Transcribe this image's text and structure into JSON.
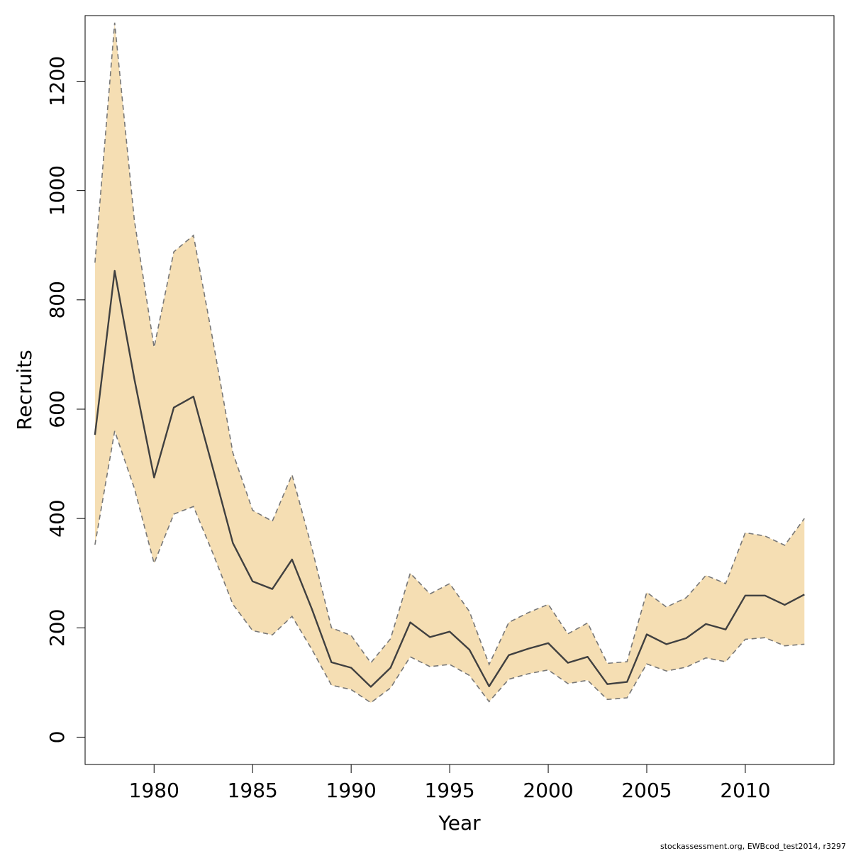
{
  "chart_data": {
    "type": "line",
    "xlabel": "Year",
    "ylabel": "Recruits",
    "xlim": [
      1976.5,
      2014.5
    ],
    "ylim": [
      -50,
      1320
    ],
    "x_ticks": [
      1980,
      1985,
      1990,
      1995,
      2000,
      2005,
      2010
    ],
    "y_ticks": [
      0,
      200,
      400,
      600,
      800,
      1000,
      1200
    ],
    "grid": false,
    "legend": "none",
    "colors": {
      "band": "#f5deb3",
      "line": "#404040",
      "bounds": "#777777"
    },
    "x": [
      1977,
      1978,
      1979,
      1980,
      1981,
      1982,
      1983,
      1984,
      1985,
      1986,
      1987,
      1988,
      1989,
      1990,
      1991,
      1992,
      1993,
      1994,
      1995,
      1996,
      1997,
      1998,
      1999,
      2000,
      2001,
      2002,
      2003,
      2004,
      2005,
      2006,
      2007,
      2008,
      2009,
      2010,
      2011,
      2012,
      2013
    ],
    "series": [
      {
        "role": "estimate",
        "values": [
          553,
          853,
          655,
          475,
          603,
          623,
          490,
          355,
          285,
          271,
          325,
          235,
          137,
          127,
          92,
          127,
          210,
          183,
          193,
          160,
          93,
          150,
          162,
          172,
          136,
          147,
          97,
          101,
          188,
          170,
          181,
          207,
          197,
          259,
          259,
          242,
          261
        ]
      },
      {
        "role": "lower",
        "values": [
          352,
          560,
          455,
          318,
          408,
          422,
          335,
          243,
          195,
          187,
          221,
          161,
          95,
          87,
          63,
          90,
          147,
          129,
          133,
          113,
          65,
          106,
          116,
          123,
          98,
          104,
          69,
          72,
          134,
          121,
          128,
          145,
          138,
          179,
          182,
          167,
          170
        ]
      },
      {
        "role": "upper",
        "values": [
          868,
          1307,
          945,
          713,
          888,
          918,
          723,
          520,
          415,
          395,
          480,
          347,
          200,
          186,
          136,
          180,
          300,
          262,
          281,
          230,
          133,
          210,
          228,
          243,
          189,
          209,
          135,
          138,
          265,
          238,
          255,
          296,
          281,
          374,
          368,
          351,
          400
        ]
      }
    ]
  },
  "footer": {
    "text": "stockassessment.org, EWBcod_test2014, r3297"
  }
}
